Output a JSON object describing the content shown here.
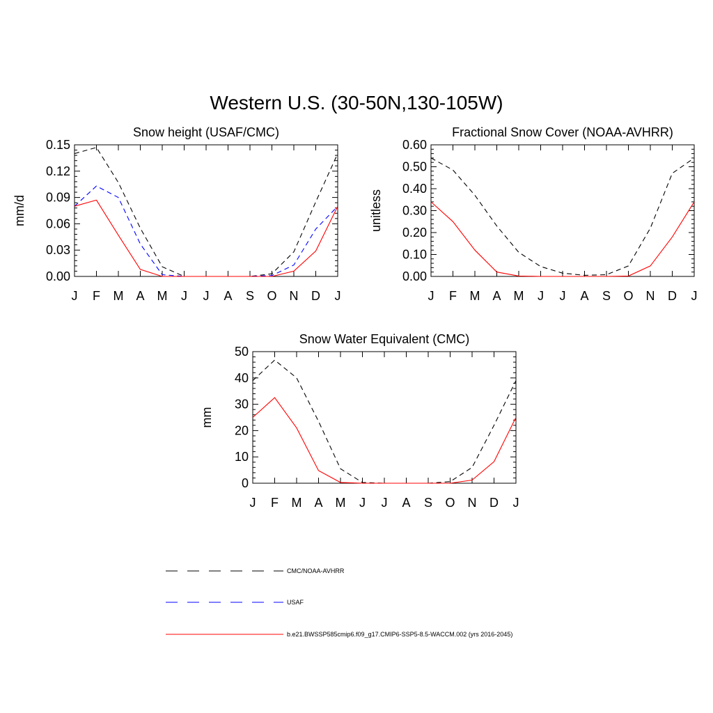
{
  "title": "Western U.S. (30-50N,130-105W)",
  "months": [
    "J",
    "F",
    "M",
    "A",
    "M",
    "J",
    "J",
    "A",
    "S",
    "O",
    "N",
    "D",
    "J"
  ],
  "colors": {
    "obs": "#000000",
    "usaf": "#0000ff",
    "model": "#ff0000"
  },
  "chart_data": [
    {
      "type": "line",
      "title": "Snow height (USAF/CMC)",
      "ylabel": "mm/d",
      "xlabel": "",
      "ylim": [
        0,
        0.15
      ],
      "yticks": [
        0.0,
        0.03,
        0.06,
        0.09,
        0.12,
        0.15
      ],
      "ytick_labels": [
        "0.00",
        "0.03",
        "0.06",
        "0.09",
        "0.12",
        "0.15"
      ],
      "x": [
        "J",
        "F",
        "M",
        "A",
        "M",
        "J",
        "J",
        "A",
        "S",
        "O",
        "N",
        "D",
        "J"
      ],
      "series": [
        {
          "name": "CMC/NOAA-AVHRR",
          "style": "dashed",
          "color": "#000000",
          "values": [
            0.14,
            0.147,
            0.107,
            0.055,
            0.011,
            0.0,
            0.0,
            0.0,
            0.0,
            0.003,
            0.028,
            0.085,
            0.14
          ]
        },
        {
          "name": "USAF",
          "style": "dashed",
          "color": "#0000ff",
          "values": [
            0.08,
            0.103,
            0.09,
            0.037,
            0.002,
            0.0,
            0.0,
            0.0,
            0.0,
            0.001,
            0.013,
            0.054,
            0.08
          ]
        },
        {
          "name": "b.e21.BWSSP585cmip6.f09_g17.CMIP6-SSP5-8.5-WACCM.002 (yrs 2016-2045)",
          "style": "solid",
          "color": "#ff0000",
          "values": [
            0.08,
            0.087,
            0.047,
            0.008,
            0.0,
            0.0,
            0.0,
            0.0,
            0.0,
            0.0,
            0.006,
            0.029,
            0.08
          ]
        }
      ]
    },
    {
      "type": "line",
      "title": "Fractional Snow Cover (NOAA-AVHRR)",
      "ylabel": "unitless",
      "xlabel": "",
      "ylim": [
        0,
        0.6
      ],
      "yticks": [
        0.0,
        0.1,
        0.2,
        0.3,
        0.4,
        0.5,
        0.6
      ],
      "ytick_labels": [
        "0.00",
        "0.10",
        "0.20",
        "0.30",
        "0.40",
        "0.50",
        "0.60"
      ],
      "x": [
        "J",
        "F",
        "M",
        "A",
        "M",
        "J",
        "J",
        "A",
        "S",
        "O",
        "N",
        "D",
        "J"
      ],
      "series": [
        {
          "name": "CMC/NOAA-AVHRR",
          "style": "dashed",
          "color": "#000000",
          "values": [
            0.54,
            0.485,
            0.37,
            0.23,
            0.11,
            0.045,
            0.015,
            0.005,
            0.008,
            0.048,
            0.22,
            0.47,
            0.54
          ]
        },
        {
          "name": "b.e21.BWSSP585cmip6.f09_g17.CMIP6-SSP5-8.5-WACCM.002 (yrs 2016-2045)",
          "style": "solid",
          "color": "#ff0000",
          "values": [
            0.34,
            0.25,
            0.12,
            0.02,
            0.002,
            0.0,
            0.0,
            0.0,
            0.0,
            0.002,
            0.048,
            0.18,
            0.34
          ]
        }
      ]
    },
    {
      "type": "line",
      "title": "Snow Water Equivalent (CMC)",
      "ylabel": "mm",
      "xlabel": "",
      "ylim": [
        0,
        50
      ],
      "yticks": [
        0,
        10,
        20,
        30,
        40,
        50
      ],
      "ytick_labels": [
        "0",
        "10",
        "20",
        "30",
        "40",
        "50"
      ],
      "x": [
        "J",
        "F",
        "M",
        "A",
        "M",
        "J",
        "J",
        "A",
        "S",
        "O",
        "N",
        "D",
        "J"
      ],
      "series": [
        {
          "name": "CMC/NOAA-AVHRR",
          "style": "dashed",
          "color": "#000000",
          "values": [
            39.0,
            46.8,
            40.0,
            23.5,
            5.5,
            0.3,
            0.0,
            0.0,
            0.0,
            0.6,
            6.0,
            22.0,
            39.0
          ]
        },
        {
          "name": "b.e21.BWSSP585cmip6.f09_g17.CMIP6-SSP5-8.5-WACCM.002 (yrs 2016-2045)",
          "style": "solid",
          "color": "#ff0000",
          "values": [
            25.0,
            32.5,
            21.0,
            4.8,
            0.3,
            0.0,
            0.0,
            0.0,
            0.0,
            0.0,
            1.2,
            8.2,
            25.0
          ]
        }
      ]
    }
  ],
  "legend": [
    {
      "label": "CMC/NOAA-AVHRR",
      "style": "dashed",
      "color": "#000000"
    },
    {
      "label": "USAF",
      "style": "dashed",
      "color": "#0000ff"
    },
    {
      "label": "b.e21.BWSSP585cmip6.f09_g17.CMIP6-SSP5-8.5-WACCM.002 (yrs 2016-2045)",
      "style": "solid",
      "color": "#ff0000"
    }
  ]
}
